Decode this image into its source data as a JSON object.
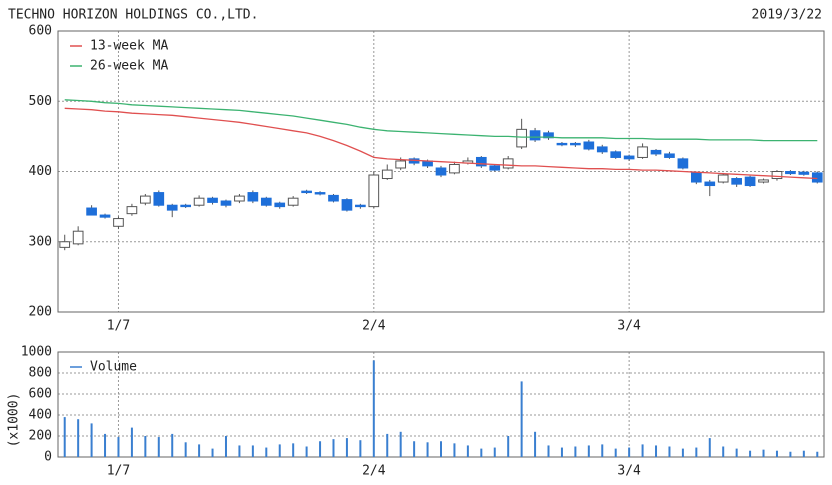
{
  "chart_data": [
    {
      "type": "candlestick",
      "title": "TECHNO HORIZON HOLDINGS CO.,LTD.",
      "subtitle": "2019/3/22",
      "categories": [
        null,
        null,
        null,
        null,
        "1/7",
        null,
        null,
        null,
        null,
        null,
        null,
        null,
        null,
        null,
        null,
        null,
        null,
        null,
        null,
        null,
        null,
        null,
        null,
        "2/4",
        null,
        null,
        null,
        null,
        null,
        null,
        null,
        null,
        null,
        null,
        null,
        null,
        null,
        null,
        null,
        null,
        null,
        null,
        "3/4",
        null,
        null,
        null,
        null,
        null,
        null,
        null,
        null,
        null,
        null,
        null,
        null,
        null,
        null
      ],
      "ohlc": {
        "up_color": "#ffffff",
        "down_color": "#1e6fd9",
        "edge_color": "#555555",
        "open": [
          292,
          297,
          348,
          338,
          322,
          340,
          355,
          370,
          352,
          352,
          352,
          362,
          358,
          358,
          370,
          362,
          355,
          352,
          372,
          370,
          366,
          360,
          352,
          350,
          390,
          405,
          418,
          415,
          405,
          398,
          412,
          420,
          408,
          405,
          435,
          458,
          455,
          440,
          440,
          442,
          435,
          428,
          422,
          420,
          430,
          425,
          418,
          398,
          385,
          385,
          390,
          392,
          385,
          390,
          400,
          399,
          398
        ],
        "high": [
          310,
          322,
          352,
          340,
          336,
          354,
          368,
          373,
          354,
          354,
          366,
          364,
          360,
          368,
          373,
          364,
          357,
          365,
          374,
          372,
          368,
          362,
          354,
          400,
          410,
          420,
          420,
          417,
          408,
          414,
          420,
          422,
          410,
          422,
          475,
          462,
          458,
          442,
          442,
          445,
          438,
          430,
          424,
          440,
          432,
          428,
          420,
          400,
          388,
          398,
          392,
          394,
          390,
          402,
          402,
          401,
          400
        ],
        "low": [
          288,
          295,
          345,
          333,
          318,
          337,
          352,
          350,
          335,
          348,
          350,
          353,
          349,
          355,
          355,
          350,
          347,
          350,
          368,
          366,
          356,
          343,
          347,
          348,
          388,
          402,
          409,
          405,
          392,
          396,
          410,
          405,
          400,
          403,
          432,
          442,
          445,
          436,
          435,
          430,
          425,
          418,
          415,
          418,
          422,
          418,
          403,
          382,
          365,
          383,
          378,
          378,
          383,
          387,
          395,
          394,
          383
        ],
        "close": [
          300,
          315,
          338,
          335,
          333,
          350,
          365,
          352,
          345,
          350,
          362,
          356,
          352,
          365,
          358,
          352,
          350,
          362,
          370,
          368,
          358,
          345,
          350,
          395,
          402,
          415,
          412,
          408,
          395,
          410,
          415,
          408,
          402,
          418,
          460,
          445,
          448,
          438,
          438,
          432,
          428,
          420,
          418,
          435,
          425,
          420,
          405,
          385,
          380,
          395,
          382,
          380,
          388,
          400,
          397,
          396,
          385
        ]
      },
      "series": [
        {
          "name": "13-week MA",
          "color": "#e05050",
          "values": [
            490,
            489,
            488,
            486,
            485,
            483,
            482,
            481,
            480,
            478,
            476,
            474,
            472,
            470,
            467,
            464,
            461,
            458,
            455,
            450,
            444,
            437,
            429,
            420,
            418,
            417,
            416,
            415,
            414,
            413,
            412,
            411,
            410,
            409,
            408,
            408,
            407,
            406,
            405,
            404,
            404,
            403,
            403,
            402,
            402,
            401,
            400,
            399,
            398,
            397,
            396,
            395,
            394,
            393,
            392,
            391,
            390
          ]
        },
        {
          "name": "26-week MA",
          "color": "#3cb371",
          "values": [
            502,
            501,
            500,
            498,
            497,
            495,
            494,
            493,
            492,
            491,
            490,
            489,
            488,
            487,
            485,
            483,
            481,
            479,
            476,
            473,
            470,
            467,
            463,
            460,
            458,
            457,
            456,
            455,
            454,
            453,
            452,
            451,
            450,
            450,
            449,
            449,
            449,
            448,
            448,
            448,
            448,
            447,
            447,
            447,
            446,
            446,
            446,
            446,
            445,
            445,
            445,
            445,
            444,
            444,
            444,
            444,
            444
          ]
        }
      ],
      "ylim": [
        200,
        600
      ],
      "yticks": [
        200,
        300,
        400,
        500,
        600
      ],
      "grid": true
    },
    {
      "type": "bar",
      "ylabel": "(x1000)",
      "categories": [
        null,
        null,
        null,
        null,
        "1/7",
        null,
        null,
        null,
        null,
        null,
        null,
        null,
        null,
        null,
        null,
        null,
        null,
        null,
        null,
        null,
        null,
        null,
        null,
        "2/4",
        null,
        null,
        null,
        null,
        null,
        null,
        null,
        null,
        null,
        null,
        null,
        null,
        null,
        null,
        null,
        null,
        null,
        null,
        "3/4",
        null,
        null,
        null,
        null,
        null,
        null,
        null,
        null,
        null,
        null,
        null,
        null,
        null,
        null
      ],
      "series": [
        {
          "name": "Volume",
          "color": "#3a7fd0",
          "values": [
            380,
            360,
            320,
            220,
            190,
            280,
            200,
            190,
            220,
            140,
            120,
            80,
            200,
            110,
            110,
            90,
            120,
            130,
            100,
            150,
            170,
            180,
            160,
            920,
            220,
            240,
            150,
            140,
            150,
            130,
            110,
            80,
            90,
            200,
            720,
            240,
            110,
            90,
            100,
            110,
            120,
            80,
            90,
            120,
            110,
            100,
            80,
            90,
            180,
            100,
            80,
            60,
            70,
            60,
            50,
            60,
            50
          ]
        }
      ],
      "ylim": [
        0,
        1000
      ],
      "yticks": [
        0,
        200,
        400,
        600,
        800,
        1000
      ],
      "grid": true
    }
  ]
}
